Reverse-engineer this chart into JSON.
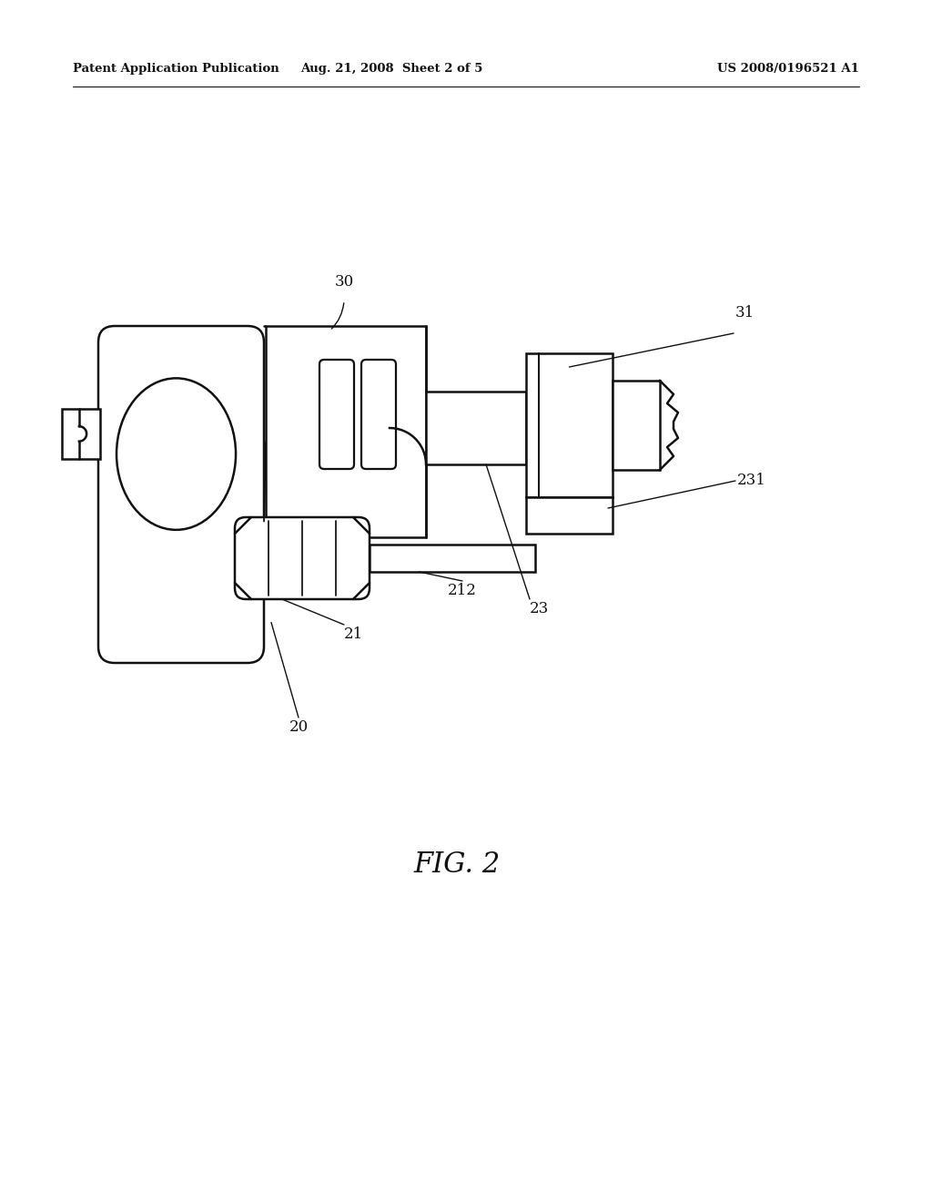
{
  "background_color": "#ffffff",
  "header_left": "Patent Application Publication",
  "header_middle": "Aug. 21, 2008  Sheet 2 of 5",
  "header_right": "US 2008/0196521 A1",
  "figure_label": "FIG. 2",
  "line_color": "#111111",
  "line_width": 1.8
}
